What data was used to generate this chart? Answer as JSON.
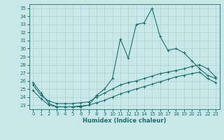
{
  "xlabel": "Humidex (Indice chaleur)",
  "background_color": "#c8e8e8",
  "grid_color": "#aacccc",
  "line_color": "#1a7070",
  "xlim": [
    -0.5,
    23.5
  ],
  "ylim": [
    22.5,
    35.5
  ],
  "yticks": [
    23,
    24,
    25,
    26,
    27,
    28,
    29,
    30,
    31,
    32,
    33,
    34,
    35
  ],
  "xticks": [
    0,
    1,
    2,
    3,
    4,
    5,
    6,
    7,
    8,
    9,
    10,
    11,
    12,
    13,
    14,
    15,
    16,
    17,
    18,
    19,
    20,
    21,
    22,
    23
  ],
  "curve1_x": [
    0,
    1,
    2,
    3,
    4,
    5,
    6,
    7,
    8,
    9,
    10,
    11,
    12,
    13,
    14,
    15,
    16,
    17,
    18,
    19,
    20,
    21,
    22,
    23
  ],
  "curve1_y": [
    25.8,
    24.5,
    23.2,
    22.8,
    22.8,
    22.8,
    22.8,
    23.0,
    24.2,
    25.0,
    26.3,
    31.2,
    28.8,
    33.0,
    33.2,
    35.0,
    31.5,
    29.8,
    30.0,
    29.5,
    28.5,
    27.5,
    26.7,
    26.3
  ],
  "curve2_x": [
    0,
    1,
    2,
    3,
    4,
    5,
    6,
    7,
    8,
    9,
    10,
    11,
    12,
    13,
    14,
    15,
    16,
    17,
    18,
    19,
    20,
    21,
    22,
    23
  ],
  "curve2_y": [
    25.5,
    24.2,
    23.5,
    23.2,
    23.2,
    23.2,
    23.3,
    23.4,
    24.0,
    24.5,
    25.0,
    25.5,
    25.8,
    26.0,
    26.3,
    26.6,
    26.9,
    27.1,
    27.3,
    27.5,
    27.8,
    28.0,
    27.5,
    26.5
  ],
  "curve3_x": [
    0,
    1,
    2,
    3,
    4,
    5,
    6,
    7,
    8,
    9,
    10,
    11,
    12,
    13,
    14,
    15,
    16,
    17,
    18,
    19,
    20,
    21,
    22,
    23
  ],
  "curve3_y": [
    24.8,
    23.8,
    23.0,
    22.8,
    22.8,
    22.8,
    22.9,
    23.0,
    23.3,
    23.6,
    24.0,
    24.4,
    24.7,
    25.0,
    25.3,
    25.6,
    25.9,
    26.2,
    26.5,
    26.7,
    26.9,
    27.1,
    26.3,
    25.8
  ],
  "tick_fontsize": 5.0,
  "xlabel_fontsize": 6.0,
  "lw": 0.8,
  "ms": 2.5
}
